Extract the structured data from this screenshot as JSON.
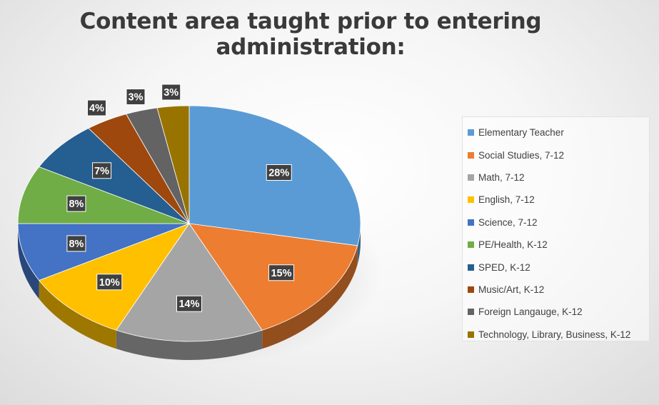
{
  "chart_data": {
    "type": "pie",
    "title": "Content area taught prior to entering administration:",
    "style": "3d",
    "legend_position": "right",
    "categories": [
      "Elementary Teacher",
      "Social Studies, 7-12",
      "Math, 7-12",
      "English, 7-12",
      "Science, 7-12",
      "PE/Health, K-12",
      "SPED, K-12",
      "Music/Art, K-12",
      "Foreign Langauge, K-12",
      "Technology, Library, Business, K-12"
    ],
    "values": [
      28,
      15,
      14,
      10,
      8,
      8,
      7,
      4,
      3,
      3
    ],
    "labels": [
      "28%",
      "15%",
      "14%",
      "10%",
      "8%",
      "8%",
      "7%",
      "4%",
      "3%",
      "3%"
    ],
    "colors": [
      "#5b9bd5",
      "#ed7d31",
      "#a5a5a5",
      "#ffc000",
      "#4472c4",
      "#70ad47",
      "#255e91",
      "#9e480e",
      "#636363",
      "#997300"
    ]
  }
}
